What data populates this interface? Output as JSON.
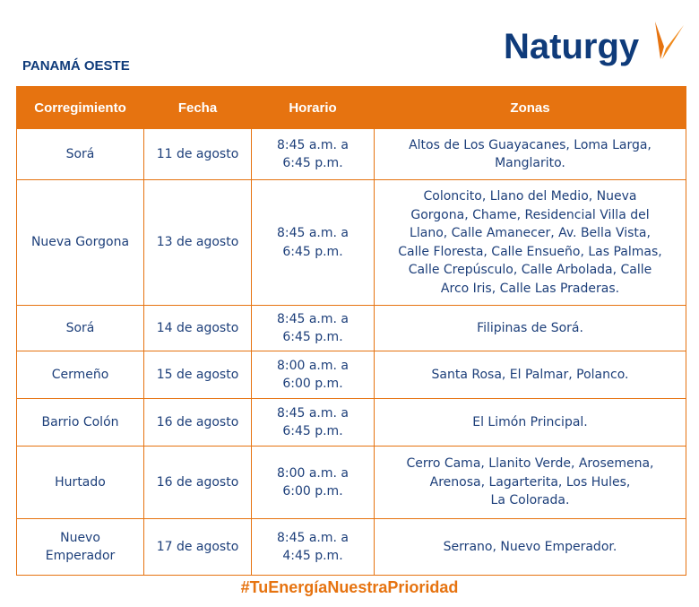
{
  "header": {
    "region": "PANAMÁ OESTE",
    "logo_text": "Naturgy"
  },
  "colors": {
    "accent": "#e67310",
    "text": "#0f3b7a"
  },
  "table": {
    "columns": [
      "Corregimiento",
      "Fecha",
      "Horario",
      "Zonas"
    ],
    "rows": [
      {
        "corregimiento": "Sorá",
        "fecha": "11 de agosto",
        "horario": "8:45 a.m. a\n6:45 p.m.",
        "zonas": "Altos de Los Guayacanes, Loma Larga,\nManglarito."
      },
      {
        "corregimiento": "Nueva Gorgona",
        "fecha": "13 de agosto",
        "horario": "8:45 a.m. a\n6:45 p.m.",
        "zonas": "Coloncito, Llano del Medio, Nueva\nGorgona, Chame, Residencial Villa del\nLlano, Calle Amanecer, Av. Bella Vista,\nCalle Floresta, Calle Ensueño, Las Palmas,\nCalle Crepúsculo, Calle Arbolada, Calle\nArco Iris, Calle Las Praderas."
      },
      {
        "corregimiento": "Sorá",
        "fecha": "14 de agosto",
        "horario": "8:45 a.m. a\n6:45 p.m.",
        "zonas": "Filipinas de Sorá."
      },
      {
        "corregimiento": "Cermeño",
        "fecha": "15 de agosto",
        "horario": "8:00 a.m. a\n6:00 p.m.",
        "zonas": "Santa Rosa, El Palmar, Polanco."
      },
      {
        "corregimiento": "Barrio Colón",
        "fecha": "16 de agosto",
        "horario": "8:45 a.m. a\n6:45 p.m.",
        "zonas": "El Limón Principal."
      },
      {
        "corregimiento": "Hurtado",
        "fecha": "16 de agosto",
        "horario": "8:00 a.m. a\n6:00 p.m.",
        "zonas": "Cerro Cama, Llanito Verde, Arosemena,\nArenosa, Lagarterita, Los Hules,\nLa Colorada."
      },
      {
        "corregimiento": "Nuevo\nEmperador",
        "fecha": "17 de agosto",
        "horario": "8:45 a.m. a\n4:45 p.m.",
        "zonas": "Serrano, Nuevo Emperador."
      }
    ]
  },
  "footer": {
    "hashtag": "#TuEnergíaNuestraPrioridad"
  }
}
